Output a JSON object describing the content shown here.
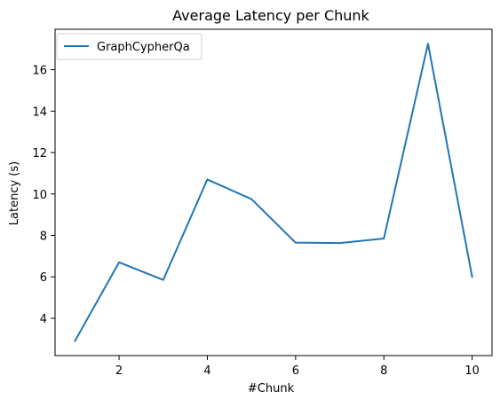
{
  "chart_data": {
    "type": "line",
    "title": "Average Latency per Chunk",
    "xlabel": "#Chunk",
    "ylabel": "Latency (s)",
    "x": [
      1,
      2,
      3,
      4,
      5,
      6,
      7,
      8,
      9,
      10
    ],
    "series": [
      {
        "name": "GraphCypherQa",
        "values": [
          2.9,
          6.7,
          5.85,
          10.7,
          9.75,
          7.65,
          7.63,
          7.85,
          17.25,
          6.0
        ],
        "color": "#1f77b4"
      }
    ],
    "xlim": [
      0.55,
      10.45
    ],
    "ylim": [
      2.2,
      17.95
    ],
    "xticks": [
      2,
      4,
      6,
      8,
      10
    ],
    "yticks": [
      4,
      6,
      8,
      10,
      12,
      14,
      16
    ],
    "grid": false,
    "legend_position": "upper-left"
  }
}
